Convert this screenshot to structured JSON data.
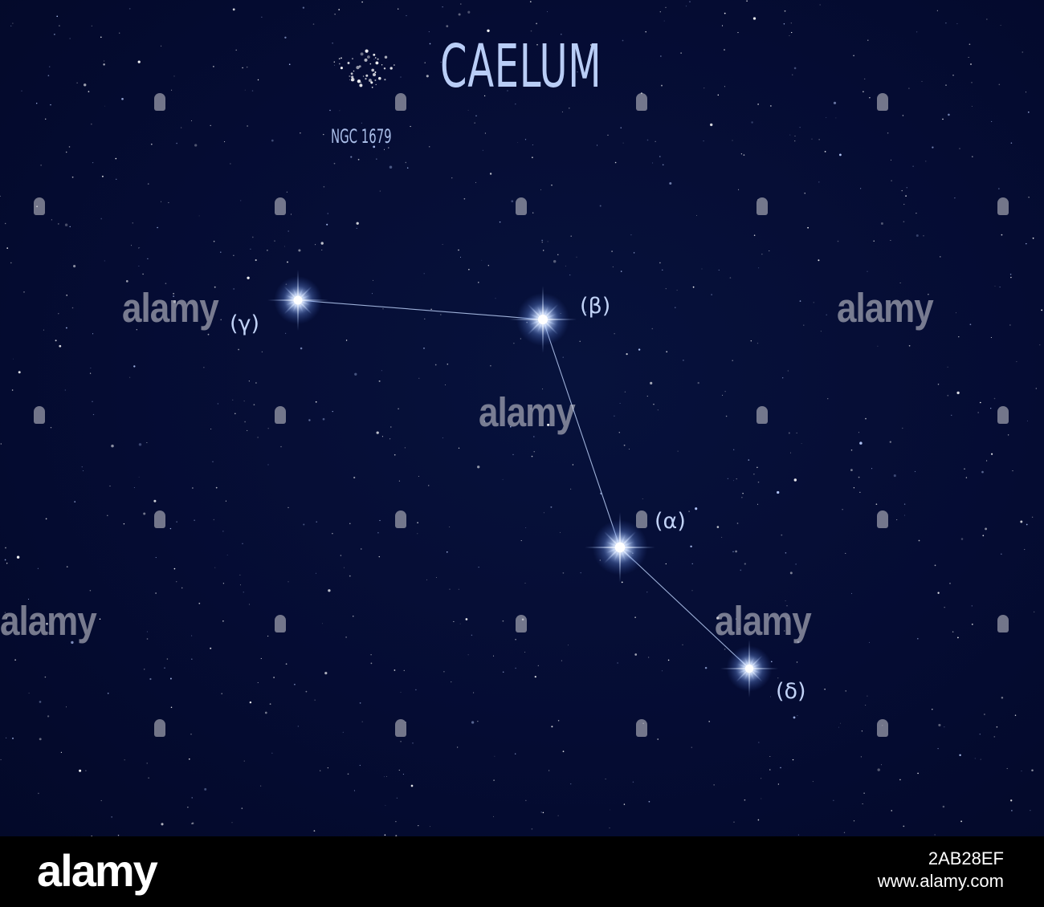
{
  "title": "CAELUM",
  "cluster_label": "NGC 1679",
  "stars": [
    {
      "label": "(γ)"
    },
    {
      "label": "(β)"
    },
    {
      "label": "(α)"
    },
    {
      "label": "(δ)"
    }
  ],
  "watermark": "alamy",
  "footer": {
    "logo": "alamy",
    "image_id": "2AB28EF",
    "site": "www.alamy.com"
  },
  "colors": {
    "sky": "#050c33",
    "label": "#c1d2f6",
    "star_core": "#ffffff",
    "star_glow": "#8fb3ff",
    "footer": "#000000"
  }
}
